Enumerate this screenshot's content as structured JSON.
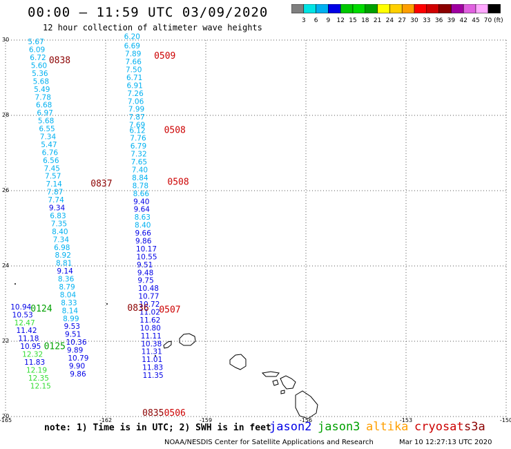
{
  "header": {
    "title": "00:00 – 11:59 UTC 03/09/2020",
    "subtitle": "12 hour collection of altimeter wave heights"
  },
  "colorbar": {
    "colors": [
      "#7f7f7f",
      "#00e4e4",
      "#00b0f0",
      "#0000e6",
      "#00c800",
      "#00dc00",
      "#00a000",
      "#ffff00",
      "#ffd000",
      "#ff9f00",
      "#ff0000",
      "#d00000",
      "#8b0000",
      "#a000a0",
      "#e060e0",
      "#ffa8ff",
      "#000000"
    ],
    "labels": [
      "3",
      "6",
      "9",
      "12",
      "15",
      "18",
      "21",
      "24",
      "27",
      "30",
      "33",
      "36",
      "39",
      "42",
      "45",
      "70 (ft)"
    ]
  },
  "note": "note: 1) Time is in UTC; 2) SWH is in feet",
  "satellites": [
    {
      "name": "jason2",
      "color": "#0000e6"
    },
    {
      "name": "jason3",
      "color": "#00a000"
    },
    {
      "name": "altika",
      "color": "#ff9f00"
    },
    {
      "name": "cryosat",
      "color": "#cc0000"
    },
    {
      "name": "s3a",
      "color": "#8b0000"
    }
  ],
  "credit": "NOAA/NESDIS Center for Satellite Applications and Research",
  "timestamp": "Mar 10 12:27:13 UTC 2020",
  "chart_data": {
    "type": "scatter",
    "title": "00:00 – 11:59 UTC 03/09/2020",
    "subtitle": "12 hour collection of altimeter wave heights",
    "xlim": [
      -165,
      -150
    ],
    "ylim": [
      20,
      30
    ],
    "x_ticks": [
      -165,
      -162,
      -159,
      -156,
      -153,
      -150
    ],
    "x_tick_labels": [
      "-165",
      "-162",
      "-159",
      "-156",
      "-153",
      "-150"
    ],
    "y_ticks": [
      20,
      22,
      24,
      26,
      28,
      30
    ],
    "y_tick_labels": [
      "20",
      "22",
      "24",
      "26",
      "28",
      "30"
    ],
    "grid": true,
    "units": "ft",
    "series": [
      {
        "name": "track-west",
        "points": [
          {
            "lon": -164.33,
            "lat": 29.96,
            "v": 5.67,
            "c": "#00b0f0"
          },
          {
            "lon": -164.3,
            "lat": 29.75,
            "v": 6.09,
            "c": "#00b0f0"
          },
          {
            "lon": -164.27,
            "lat": 29.54,
            "v": 6.72,
            "c": "#00b0f0"
          },
          {
            "lon": -164.24,
            "lat": 29.33,
            "v": 5.6,
            "c": "#00b0f0"
          },
          {
            "lon": -164.21,
            "lat": 29.12,
            "v": 5.36,
            "c": "#00b0f0"
          },
          {
            "lon": -164.18,
            "lat": 28.91,
            "v": 5.68,
            "c": "#00b0f0"
          },
          {
            "lon": -164.15,
            "lat": 28.7,
            "v": 5.49,
            "c": "#00b0f0"
          },
          {
            "lon": -164.12,
            "lat": 28.49,
            "v": 7.78,
            "c": "#00b0f0"
          },
          {
            "lon": -164.09,
            "lat": 28.28,
            "v": 6.68,
            "c": "#00b0f0"
          },
          {
            "lon": -164.06,
            "lat": 28.07,
            "v": 6.97,
            "c": "#00b0f0"
          },
          {
            "lon": -164.03,
            "lat": 27.86,
            "v": 5.68,
            "c": "#00b0f0"
          },
          {
            "lon": -164.0,
            "lat": 27.65,
            "v": 6.55,
            "c": "#00b0f0"
          },
          {
            "lon": -163.97,
            "lat": 27.44,
            "v": 7.34,
            "c": "#00b0f0"
          },
          {
            "lon": -163.94,
            "lat": 27.23,
            "v": 5.47,
            "c": "#00b0f0"
          },
          {
            "lon": -163.91,
            "lat": 27.02,
            "v": 6.76,
            "c": "#00b0f0"
          },
          {
            "lon": -163.88,
            "lat": 26.81,
            "v": 6.56,
            "c": "#00b0f0"
          },
          {
            "lon": -163.85,
            "lat": 26.6,
            "v": 7.45,
            "c": "#00b0f0"
          },
          {
            "lon": -163.82,
            "lat": 26.39,
            "v": 7.57,
            "c": "#00b0f0"
          },
          {
            "lon": -163.79,
            "lat": 26.18,
            "v": 7.14,
            "c": "#00b0f0"
          },
          {
            "lon": -163.76,
            "lat": 25.97,
            "v": 7.87,
            "c": "#00b0f0"
          },
          {
            "lon": -163.73,
            "lat": 25.76,
            "v": 7.74,
            "c": "#00b0f0"
          },
          {
            "lon": -163.7,
            "lat": 25.55,
            "v": 9.34,
            "c": "#0000e6"
          },
          {
            "lon": -163.67,
            "lat": 25.34,
            "v": 6.83,
            "c": "#00b0f0"
          },
          {
            "lon": -163.64,
            "lat": 25.13,
            "v": 7.35,
            "c": "#00b0f0"
          },
          {
            "lon": -163.61,
            "lat": 24.92,
            "v": 8.4,
            "c": "#00b0f0"
          },
          {
            "lon": -163.58,
            "lat": 24.71,
            "v": 7.34,
            "c": "#00b0f0"
          },
          {
            "lon": -163.55,
            "lat": 24.5,
            "v": 6.98,
            "c": "#00b0f0"
          },
          {
            "lon": -163.52,
            "lat": 24.29,
            "v": 8.92,
            "c": "#00b0f0"
          },
          {
            "lon": -163.49,
            "lat": 24.08,
            "v": 8.81,
            "c": "#00b0f0"
          },
          {
            "lon": -163.46,
            "lat": 23.87,
            "v": 9.14,
            "c": "#0000e6"
          },
          {
            "lon": -163.43,
            "lat": 23.66,
            "v": 8.36,
            "c": "#00b0f0"
          },
          {
            "lon": -163.4,
            "lat": 23.45,
            "v": 8.79,
            "c": "#00b0f0"
          },
          {
            "lon": -163.37,
            "lat": 23.24,
            "v": 8.04,
            "c": "#00b0f0"
          },
          {
            "lon": -163.34,
            "lat": 23.03,
            "v": 8.33,
            "c": "#00b0f0"
          },
          {
            "lon": -163.31,
            "lat": 22.82,
            "v": 8.14,
            "c": "#00b0f0"
          },
          {
            "lon": -163.28,
            "lat": 22.61,
            "v": 8.99,
            "c": "#00b0f0"
          },
          {
            "lon": -163.25,
            "lat": 22.4,
            "v": 9.53,
            "c": "#0000e6"
          },
          {
            "lon": -163.22,
            "lat": 22.19,
            "v": 9.51,
            "c": "#0000e6"
          },
          {
            "lon": -163.19,
            "lat": 21.98,
            "v": 10.36,
            "c": "#0000e6"
          },
          {
            "lon": -163.16,
            "lat": 21.77,
            "v": 9.89,
            "c": "#0000e6"
          },
          {
            "lon": -163.13,
            "lat": 21.56,
            "v": 10.79,
            "c": "#0000e6"
          },
          {
            "lon": -163.1,
            "lat": 21.35,
            "v": 9.9,
            "c": "#0000e6"
          },
          {
            "lon": -163.07,
            "lat": 21.14,
            "v": 9.86,
            "c": "#0000e6"
          }
        ]
      },
      {
        "name": "track-east",
        "points": [
          {
            "lon": -161.45,
            "lat": 30.1,
            "v": 6.2,
            "c": "#00b0f0"
          },
          {
            "lon": -161.45,
            "lat": 29.85,
            "v": 6.69,
            "c": "#00b0f0"
          },
          {
            "lon": -161.42,
            "lat": 29.64,
            "v": 7.89,
            "c": "#00b0f0"
          },
          {
            "lon": -161.41,
            "lat": 29.43,
            "v": 7.66,
            "c": "#00b0f0"
          },
          {
            "lon": -161.4,
            "lat": 29.22,
            "v": 7.5,
            "c": "#00b0f0"
          },
          {
            "lon": -161.38,
            "lat": 29.01,
            "v": 6.71,
            "c": "#00b0f0"
          },
          {
            "lon": -161.37,
            "lat": 28.8,
            "v": 6.91,
            "c": "#00b0f0"
          },
          {
            "lon": -161.35,
            "lat": 28.59,
            "v": 7.26,
            "c": "#00b0f0"
          },
          {
            "lon": -161.34,
            "lat": 28.38,
            "v": 7.06,
            "c": "#00b0f0"
          },
          {
            "lon": -161.32,
            "lat": 28.17,
            "v": 7.99,
            "c": "#00b0f0"
          },
          {
            "lon": -161.31,
            "lat": 27.96,
            "v": 7.87,
            "c": "#00b0f0"
          },
          {
            "lon": -161.3,
            "lat": 27.75,
            "v": 7.69,
            "c": "#00b0f0"
          },
          {
            "lon": -161.29,
            "lat": 27.61,
            "v": 6.12,
            "c": "#00b0f0"
          },
          {
            "lon": -161.27,
            "lat": 27.4,
            "v": 7.76,
            "c": "#00b0f0"
          },
          {
            "lon": -161.26,
            "lat": 27.19,
            "v": 6.79,
            "c": "#00b0f0"
          },
          {
            "lon": -161.25,
            "lat": 26.98,
            "v": 7.32,
            "c": "#00b0f0"
          },
          {
            "lon": -161.24,
            "lat": 26.77,
            "v": 7.65,
            "c": "#00b0f0"
          },
          {
            "lon": -161.22,
            "lat": 26.56,
            "v": 7.4,
            "c": "#00b0f0"
          },
          {
            "lon": -161.21,
            "lat": 26.35,
            "v": 8.84,
            "c": "#00b0f0"
          },
          {
            "lon": -161.2,
            "lat": 26.14,
            "v": 8.78,
            "c": "#00b0f0"
          },
          {
            "lon": -161.18,
            "lat": 25.93,
            "v": 8.66,
            "c": "#00b0f0"
          },
          {
            "lon": -161.17,
            "lat": 25.72,
            "v": 9.4,
            "c": "#0000e6"
          },
          {
            "lon": -161.16,
            "lat": 25.51,
            "v": 9.64,
            "c": "#0000e6"
          },
          {
            "lon": -161.14,
            "lat": 25.3,
            "v": 8.63,
            "c": "#00b0f0"
          },
          {
            "lon": -161.13,
            "lat": 25.09,
            "v": 8.4,
            "c": "#00b0f0"
          },
          {
            "lon": -161.12,
            "lat": 24.88,
            "v": 9.66,
            "c": "#0000e6"
          },
          {
            "lon": -161.11,
            "lat": 24.67,
            "v": 9.86,
            "c": "#0000e6"
          },
          {
            "lon": -161.09,
            "lat": 24.46,
            "v": 10.17,
            "c": "#0000e6"
          },
          {
            "lon": -161.08,
            "lat": 24.25,
            "v": 10.55,
            "c": "#0000e6"
          },
          {
            "lon": -161.07,
            "lat": 24.04,
            "v": 9.51,
            "c": "#0000e6"
          },
          {
            "lon": -161.05,
            "lat": 23.83,
            "v": 9.48,
            "c": "#0000e6"
          },
          {
            "lon": -161.04,
            "lat": 23.62,
            "v": 9.75,
            "c": "#0000e6"
          },
          {
            "lon": -161.03,
            "lat": 23.41,
            "v": 10.48,
            "c": "#0000e6"
          },
          {
            "lon": -161.02,
            "lat": 23.2,
            "v": 10.77,
            "c": "#0000e6"
          },
          {
            "lon": -161.0,
            "lat": 22.99,
            "v": 10.72,
            "c": "#0000e6"
          },
          {
            "lon": -160.99,
            "lat": 22.78,
            "v": 11.02,
            "c": "#0000e6"
          },
          {
            "lon": -160.98,
            "lat": 22.57,
            "v": 11.62,
            "c": "#0000e6"
          },
          {
            "lon": -160.97,
            "lat": 22.36,
            "v": 10.8,
            "c": "#0000e6"
          },
          {
            "lon": -160.95,
            "lat": 22.15,
            "v": 11.11,
            "c": "#0000e6"
          },
          {
            "lon": -160.94,
            "lat": 21.94,
            "v": 10.38,
            "c": "#0000e6"
          },
          {
            "lon": -160.93,
            "lat": 21.73,
            "v": 11.31,
            "c": "#0000e6"
          },
          {
            "lon": -160.92,
            "lat": 21.52,
            "v": 11.01,
            "c": "#0000e6"
          },
          {
            "lon": -160.9,
            "lat": 21.31,
            "v": 11.83,
            "c": "#0000e6"
          },
          {
            "lon": -160.89,
            "lat": 21.1,
            "v": 11.35,
            "c": "#0000e6"
          }
        ]
      },
      {
        "name": "track-southwest",
        "points": [
          {
            "lon": -164.85,
            "lat": 22.92,
            "v": 10.94,
            "c": "#0000e6"
          },
          {
            "lon": -164.8,
            "lat": 22.71,
            "v": 10.53,
            "c": "#0000e6"
          },
          {
            "lon": -164.74,
            "lat": 22.5,
            "v": 12.47,
            "c": "#33dd33"
          },
          {
            "lon": -164.68,
            "lat": 22.29,
            "v": 11.42,
            "c": "#0000e6"
          },
          {
            "lon": -164.62,
            "lat": 22.08,
            "v": 11.18,
            "c": "#0000e6"
          },
          {
            "lon": -164.56,
            "lat": 21.87,
            "v": 10.95,
            "c": "#0000e6"
          },
          {
            "lon": -164.5,
            "lat": 21.66,
            "v": 12.32,
            "c": "#33dd33"
          },
          {
            "lon": -164.44,
            "lat": 21.45,
            "v": 11.83,
            "c": "#0000e6"
          },
          {
            "lon": -164.38,
            "lat": 21.24,
            "v": 12.19,
            "c": "#33dd33"
          },
          {
            "lon": -164.32,
            "lat": 21.03,
            "v": 12.35,
            "c": "#33dd33"
          },
          {
            "lon": -164.26,
            "lat": 20.82,
            "v": 12.15,
            "c": "#33dd33"
          }
        ]
      }
    ],
    "time_labels": [
      {
        "lon": -163.7,
        "lat": 29.48,
        "text": "0838",
        "color": "#8b0000"
      },
      {
        "lon": -160.55,
        "lat": 29.6,
        "text": "0509",
        "color": "#cc0000"
      },
      {
        "lon": -160.25,
        "lat": 27.62,
        "text": "0508",
        "color": "#cc0000"
      },
      {
        "lon": -162.45,
        "lat": 26.2,
        "text": "0837",
        "color": "#8b0000"
      },
      {
        "lon": -160.15,
        "lat": 26.25,
        "text": "0508",
        "color": "#cc0000"
      },
      {
        "lon": -160.4,
        "lat": 22.85,
        "text": "0507",
        "color": "#cc0000"
      },
      {
        "lon": -161.35,
        "lat": 22.9,
        "text": "0836",
        "color": "#8b0000"
      },
      {
        "lon": -164.25,
        "lat": 22.88,
        "text": "0124",
        "color": "#00a000"
      },
      {
        "lon": -163.85,
        "lat": 21.88,
        "text": "0125",
        "color": "#00a000"
      },
      {
        "lon": -160.9,
        "lat": 20.11,
        "text": "0835",
        "color": "#8b0000"
      },
      {
        "lon": -160.25,
        "lat": 20.11,
        "text": "0506",
        "color": "#cc0000"
      }
    ]
  }
}
